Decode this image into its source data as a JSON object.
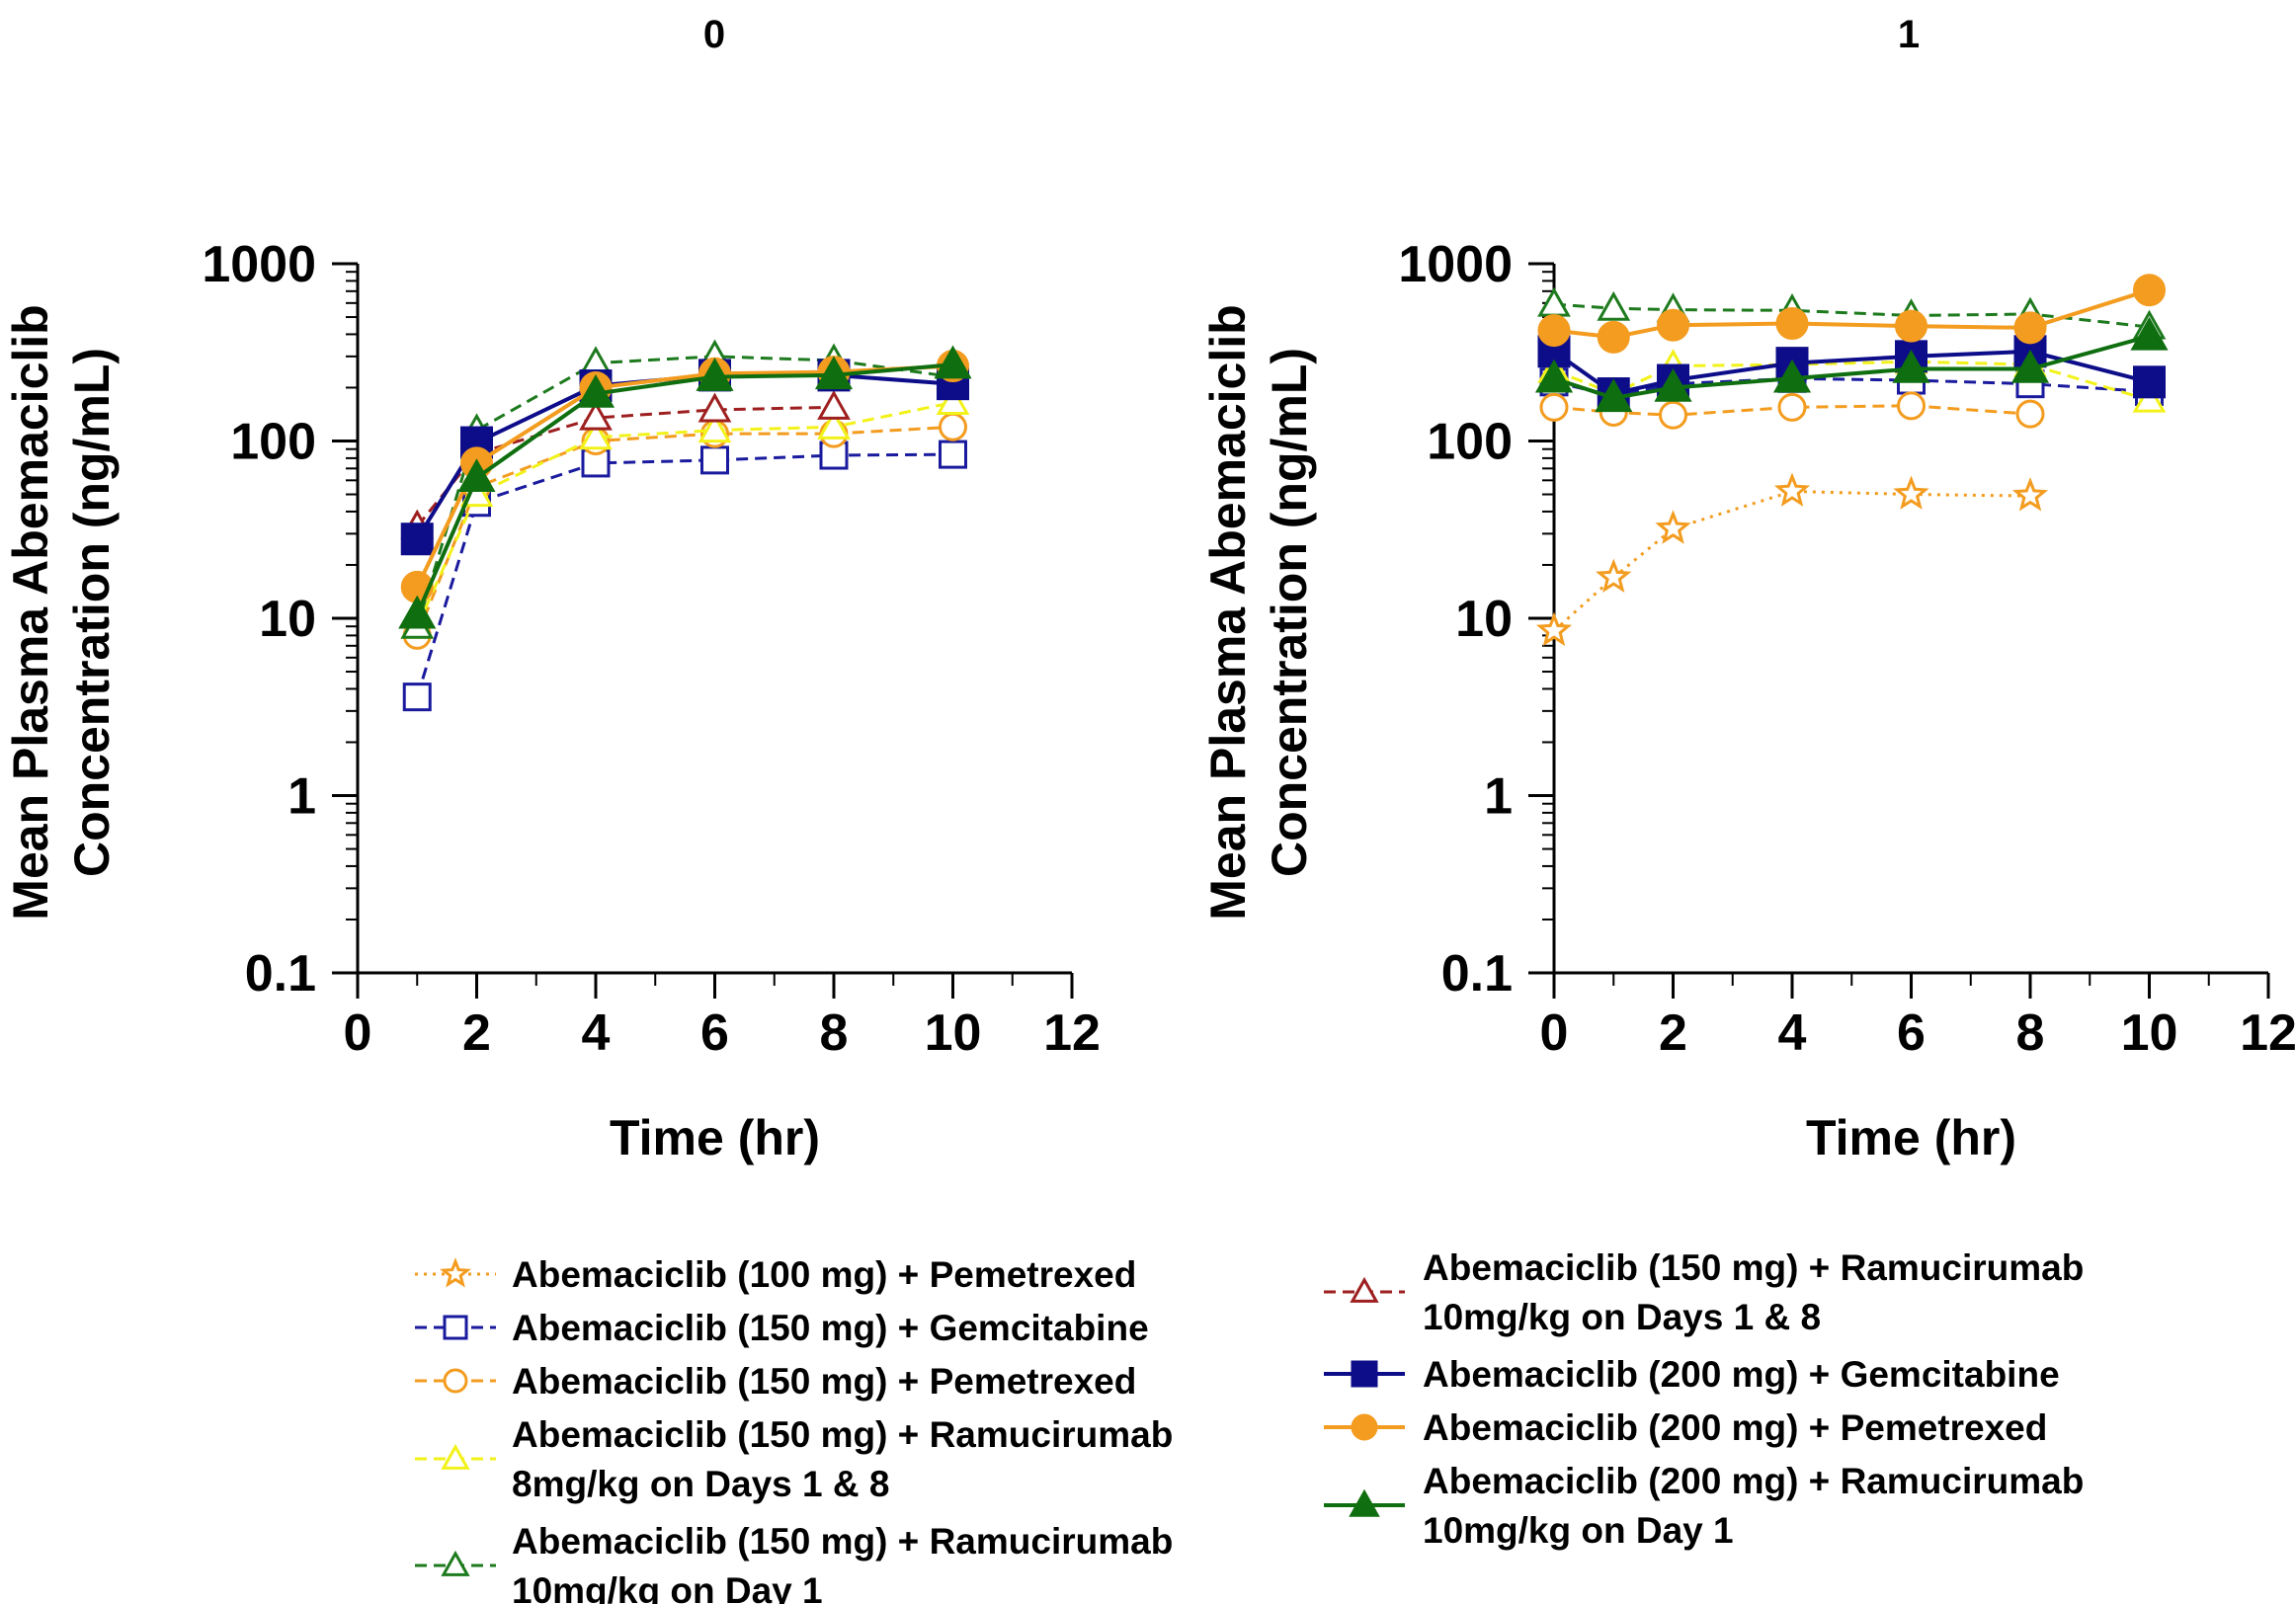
{
  "chart_data": [
    {
      "type": "line",
      "title": "0",
      "xlabel": "Time (hr)",
      "ylabel": "Mean Plasma Abemaciclib Concentration (ng/mL)",
      "ylabel_lines": [
        "Mean Plasma Abemaciclib",
        "Concentration (ng/mL)"
      ],
      "xlim": [
        0,
        12
      ],
      "ylim": [
        0.1,
        1000
      ],
      "yscale": "log",
      "xticks": [
        0,
        2,
        4,
        6,
        8,
        10,
        12
      ],
      "yticks": [
        0.1,
        1,
        10,
        100,
        1000
      ],
      "ytick_labels": [
        "0.1",
        "1",
        "10",
        "100",
        "1000"
      ],
      "grid": false,
      "series": [
        {
          "name": "Abemaciclib (100 mg) + Pemetrexed",
          "x": [],
          "y": []
        },
        {
          "name": "Abemaciclib (150 mg) + Gemcitabine",
          "x": [
            1,
            2,
            4,
            6,
            8,
            10
          ],
          "y": [
            3.6,
            45,
            75,
            78,
            83,
            84
          ]
        },
        {
          "name": "Abemaciclib (150 mg) + Pemetrexed",
          "x": [
            1,
            2,
            4,
            6,
            8,
            10
          ],
          "y": [
            8,
            55,
            100,
            110,
            110,
            120
          ]
        },
        {
          "name": "Abemaciclib (150 mg) + Ramucirumab 8mg/kg on Days 1 & 8",
          "x": [
            1,
            2,
            4,
            6,
            8,
            10
          ],
          "y": [
            9,
            50,
            105,
            115,
            120,
            165
          ]
        },
        {
          "name": "Abemaciclib (150 mg) + Ramucirumab 10mg/kg on Day 1",
          "x": [
            1,
            2,
            4,
            6,
            8,
            10
          ],
          "y": [
            9,
            115,
            275,
            300,
            285,
            230
          ]
        },
        {
          "name": "Abemaciclib (150 mg) + Ramucirumab 10mg/kg on Days 1 & 8",
          "x": [
            1,
            2,
            4,
            6,
            8
          ],
          "y": [
            33,
            85,
            135,
            150,
            155
          ]
        },
        {
          "name": "Abemaciclib (200 mg) + Gemcitabine",
          "x": [
            1,
            2,
            4,
            6,
            8,
            10
          ],
          "y": [
            28,
            98,
            205,
            235,
            235,
            210
          ]
        },
        {
          "name": "Abemaciclib (200 mg) + Pemetrexed",
          "x": [
            1,
            2,
            4,
            6,
            8,
            10
          ],
          "y": [
            15,
            75,
            200,
            240,
            245,
            265
          ]
        },
        {
          "name": "Abemaciclib (200 mg) + Ramucirumab 10mg/kg on Day 1",
          "x": [
            1,
            2,
            4,
            6,
            8,
            10
          ],
          "y": [
            10.5,
            62,
            185,
            230,
            235,
            270
          ]
        }
      ]
    },
    {
      "type": "line",
      "title": "1",
      "xlabel": "Time (hr)",
      "ylabel": "Mean Plasma Abemaciclib Concentration (ng/mL)",
      "ylabel_lines": [
        "Mean Plasma Abemaciclib",
        "Concentration (ng/mL)"
      ],
      "xlim": [
        0,
        12
      ],
      "ylim": [
        0.1,
        1000
      ],
      "yscale": "log",
      "xticks": [
        0,
        2,
        4,
        6,
        8,
        10,
        12
      ],
      "yticks": [
        0.1,
        1,
        10,
        100,
        1000
      ],
      "ytick_labels": [
        "0.1",
        "1",
        "10",
        "100",
        "1000"
      ],
      "grid": false,
      "series": [
        {
          "name": "Abemaciclib (100 mg) + Pemetrexed",
          "x": [
            0,
            1,
            2,
            4,
            6,
            8
          ],
          "y": [
            8.5,
            17,
            32,
            52,
            50,
            49
          ]
        },
        {
          "name": "Abemaciclib (150 mg) + Gemcitabine",
          "x": [
            0,
            1,
            2,
            4,
            6,
            8,
            10
          ],
          "y": [
            215,
            180,
            210,
            225,
            220,
            210,
            190
          ]
        },
        {
          "name": "Abemaciclib (150 mg) + Pemetrexed",
          "x": [
            0,
            1,
            2,
            4,
            6,
            8
          ],
          "y": [
            155,
            145,
            140,
            155,
            158,
            142
          ]
        },
        {
          "name": "Abemaciclib (150 mg) + Ramucirumab 8mg/kg on Days 1 & 8",
          "x": [
            0,
            1,
            2,
            4,
            6,
            8,
            10
          ],
          "y": [
            250,
            185,
            265,
            270,
            280,
            270,
            170
          ]
        },
        {
          "name": "Abemaciclib (150 mg) + Ramucirumab 10mg/kg on Day 1",
          "x": [
            0,
            1,
            2,
            4,
            6,
            8,
            10
          ],
          "y": [
            590,
            560,
            550,
            545,
            510,
            520,
            440
          ]
        },
        {
          "name": "Abemaciclib (150 mg) + Ramucirumab 10mg/kg on Days 1 & 8",
          "x": [],
          "y": []
        },
        {
          "name": "Abemaciclib (200 mg) + Gemcitabine",
          "x": [
            0,
            1,
            2,
            4,
            6,
            8,
            10
          ],
          "y": [
            320,
            185,
            220,
            275,
            300,
            320,
            215
          ]
        },
        {
          "name": "Abemaciclib (200 mg) + Pemetrexed",
          "x": [
            0,
            1,
            2,
            4,
            6,
            8,
            10
          ],
          "y": [
            420,
            385,
            450,
            460,
            445,
            435,
            710
          ]
        },
        {
          "name": "Abemaciclib (200 mg) + Ramucirumab 10mg/kg on Day 1",
          "x": [
            0,
            1,
            2,
            4,
            6,
            8,
            10
          ],
          "y": [
            225,
            175,
            200,
            225,
            255,
            255,
            390
          ]
        }
      ]
    }
  ],
  "legend": {
    "placement": "bottom",
    "columns": [
      [
        {
          "series": 0,
          "lines": [
            "Abemaciclib (100 mg) + Pemetrexed"
          ]
        },
        {
          "series": 1,
          "lines": [
            "Abemaciclib (150 mg) + Gemcitabine"
          ]
        },
        {
          "series": 2,
          "lines": [
            "Abemaciclib (150 mg) + Pemetrexed"
          ]
        },
        {
          "series": 3,
          "lines": [
            "Abemaciclib (150 mg) + Ramucirumab",
            "8mg/kg on Days 1 & 8"
          ]
        },
        {
          "series": 4,
          "lines": [
            "Abemaciclib (150 mg) + Ramucirumab",
            "10mg/kg on Day 1"
          ]
        }
      ],
      [
        {
          "series": 5,
          "lines": [
            "Abemaciclib (150 mg) + Ramucirumab",
            "10mg/kg on Days 1 & 8"
          ]
        },
        {
          "series": 6,
          "lines": [
            "Abemaciclib (200 mg) + Gemcitabine"
          ]
        },
        {
          "series": 7,
          "lines": [
            "Abemaciclib (200 mg) + Pemetrexed"
          ]
        },
        {
          "series": 8,
          "lines": [
            "Abemaciclib (200 mg) + Ramucirumab",
            "10mg/kg on Day 1"
          ]
        }
      ]
    ]
  },
  "series_styles": [
    {
      "color": "#F39C1F",
      "line": "dotted",
      "marker": "star",
      "filled": false
    },
    {
      "color": "#1A1A9E",
      "line": "dashed",
      "marker": "square",
      "filled": false
    },
    {
      "color": "#F39C1F",
      "line": "dashed",
      "marker": "circle",
      "filled": false
    },
    {
      "color": "#F2F21A",
      "line": "dashed",
      "marker": "triangle",
      "filled": false
    },
    {
      "color": "#1E7A1E",
      "line": "dashed",
      "marker": "triangle",
      "filled": false
    },
    {
      "color": "#9E1F1F",
      "line": "dashed",
      "marker": "triangle",
      "filled": false
    },
    {
      "color": "#0D0D8A",
      "line": "solid",
      "marker": "square",
      "filled": true
    },
    {
      "color": "#F39C1F",
      "line": "solid",
      "marker": "circle",
      "filled": true
    },
    {
      "color": "#0F6E0F",
      "line": "solid",
      "marker": "triangle",
      "filled": true
    }
  ]
}
